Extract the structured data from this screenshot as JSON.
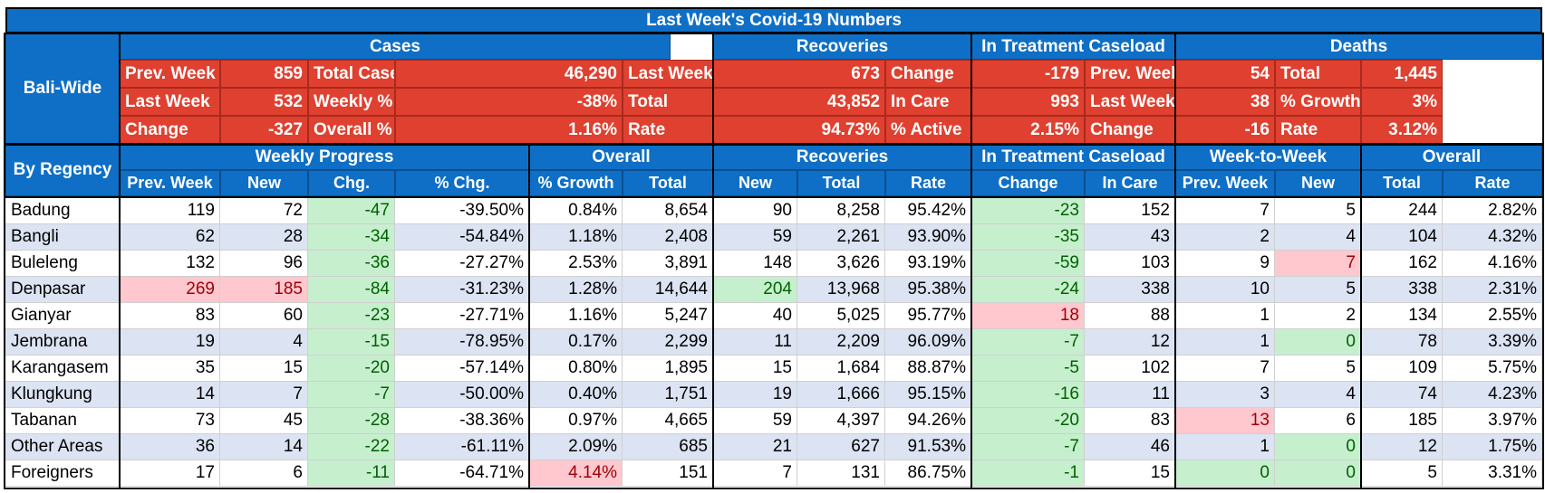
{
  "title": "Last Week's Covid-19 Numbers",
  "bali": {
    "label": "Bali-Wide",
    "groups": [
      "Cases",
      "Recoveries",
      "In Treatment Caseload",
      "Deaths"
    ],
    "rows": [
      [
        "Prev. Week",
        "859",
        "Total Cases",
        "46,290",
        "Last Week",
        "673",
        "Change",
        "-179",
        "Prev. Week",
        "54",
        "Total",
        "1,445"
      ],
      [
        "Last Week",
        "532",
        "Weekly % Change",
        "-38%",
        "Total",
        "43,852",
        "In Care",
        "993",
        "Last Week",
        "38",
        "% Growth",
        "3%"
      ],
      [
        "Change",
        "-327",
        "Overall % Growth",
        "1.16%",
        "Rate",
        "94.73%",
        "% Active",
        "2.15%",
        "Change",
        "-16",
        "Rate",
        "3.12%"
      ]
    ]
  },
  "regency": {
    "label": "By Regency",
    "groups": [
      "Weekly Progress",
      "Overall",
      "Recoveries",
      "In Treatment Caseload",
      "Week-to-Week",
      "Overall"
    ],
    "columns": [
      "Prev. Week",
      "New",
      "Chg.",
      "% Chg.",
      "% Growth",
      "Total",
      "New",
      "Total",
      "Rate",
      "Change",
      "In Care",
      "Prev. Week",
      "New",
      "Total",
      "Rate"
    ],
    "rows": [
      {
        "name": "Badung",
        "values": [
          "119",
          "72",
          "-47",
          "-39.50%",
          "0.84%",
          "8,654",
          "90",
          "8,258",
          "95.42%",
          "-23",
          "152",
          "7",
          "5",
          "244",
          "2.82%"
        ],
        "hl": [
          "",
          "",
          "g",
          "",
          "",
          "",
          "",
          "",
          "",
          "g",
          "",
          "",
          "",
          "",
          ""
        ]
      },
      {
        "name": "Bangli",
        "values": [
          "62",
          "28",
          "-34",
          "-54.84%",
          "1.18%",
          "2,408",
          "59",
          "2,261",
          "93.90%",
          "-35",
          "43",
          "2",
          "4",
          "104",
          "4.32%"
        ],
        "hl": [
          "",
          "",
          "g",
          "",
          "",
          "",
          "",
          "",
          "",
          "g",
          "",
          "",
          "",
          "",
          ""
        ]
      },
      {
        "name": "Buleleng",
        "values": [
          "132",
          "96",
          "-36",
          "-27.27%",
          "2.53%",
          "3,891",
          "148",
          "3,626",
          "93.19%",
          "-59",
          "103",
          "9",
          "7",
          "162",
          "4.16%"
        ],
        "hl": [
          "",
          "",
          "g",
          "",
          "",
          "",
          "",
          "",
          "",
          "g",
          "",
          "",
          "p",
          "",
          ""
        ]
      },
      {
        "name": "Denpasar",
        "values": [
          "269",
          "185",
          "-84",
          "-31.23%",
          "1.28%",
          "14,644",
          "204",
          "13,968",
          "95.38%",
          "-24",
          "338",
          "10",
          "5",
          "338",
          "2.31%"
        ],
        "hl": [
          "p",
          "p",
          "g",
          "",
          "",
          "",
          "g",
          "",
          "",
          "g",
          "",
          "",
          "",
          "",
          ""
        ]
      },
      {
        "name": "Gianyar",
        "values": [
          "83",
          "60",
          "-23",
          "-27.71%",
          "1.16%",
          "5,247",
          "40",
          "5,025",
          "95.77%",
          "18",
          "88",
          "1",
          "2",
          "134",
          "2.55%"
        ],
        "hl": [
          "",
          "",
          "g",
          "",
          "",
          "",
          "",
          "",
          "",
          "p",
          "",
          "",
          "",
          "",
          ""
        ]
      },
      {
        "name": "Jembrana",
        "values": [
          "19",
          "4",
          "-15",
          "-78.95%",
          "0.17%",
          "2,299",
          "11",
          "2,209",
          "96.09%",
          "-7",
          "12",
          "1",
          "0",
          "78",
          "3.39%"
        ],
        "hl": [
          "",
          "",
          "g",
          "",
          "",
          "",
          "",
          "",
          "",
          "g",
          "",
          "",
          "g",
          "",
          ""
        ]
      },
      {
        "name": "Karangasem",
        "values": [
          "35",
          "15",
          "-20",
          "-57.14%",
          "0.80%",
          "1,895",
          "15",
          "1,684",
          "88.87%",
          "-5",
          "102",
          "7",
          "5",
          "109",
          "5.75%"
        ],
        "hl": [
          "",
          "",
          "g",
          "",
          "",
          "",
          "",
          "",
          "",
          "g",
          "",
          "",
          "",
          "",
          ""
        ]
      },
      {
        "name": "Klungkung",
        "values": [
          "14",
          "7",
          "-7",
          "-50.00%",
          "0.40%",
          "1,751",
          "19",
          "1,666",
          "95.15%",
          "-16",
          "11",
          "3",
          "4",
          "74",
          "4.23%"
        ],
        "hl": [
          "",
          "",
          "g",
          "",
          "",
          "",
          "",
          "",
          "",
          "g",
          "",
          "",
          "",
          "",
          ""
        ]
      },
      {
        "name": "Tabanan",
        "values": [
          "73",
          "45",
          "-28",
          "-38.36%",
          "0.97%",
          "4,665",
          "59",
          "4,397",
          "94.26%",
          "-20",
          "83",
          "13",
          "6",
          "185",
          "3.97%"
        ],
        "hl": [
          "",
          "",
          "g",
          "",
          "",
          "",
          "",
          "",
          "",
          "g",
          "",
          "p",
          "",
          "",
          ""
        ]
      },
      {
        "name": "Other Areas",
        "values": [
          "36",
          "14",
          "-22",
          "-61.11%",
          "2.09%",
          "685",
          "21",
          "627",
          "91.53%",
          "-7",
          "46",
          "1",
          "0",
          "12",
          "1.75%"
        ],
        "hl": [
          "",
          "",
          "g",
          "",
          "",
          "",
          "",
          "",
          "",
          "g",
          "",
          "",
          "g",
          "",
          ""
        ]
      },
      {
        "name": "Foreigners",
        "values": [
          "17",
          "6",
          "-11",
          "-64.71%",
          "4.14%",
          "151",
          "7",
          "131",
          "86.75%",
          "-1",
          "15",
          "0",
          "0",
          "5",
          "3.31%"
        ],
        "hl": [
          "",
          "",
          "g",
          "",
          "p",
          "",
          "",
          "",
          "",
          "g",
          "",
          "g",
          "g",
          "",
          ""
        ]
      }
    ]
  },
  "colors": {
    "header": "#0f6fc6",
    "summary": "#e04030",
    "green": "#c6efce",
    "pink": "#ffc7ce",
    "band": "#dce3f2"
  }
}
